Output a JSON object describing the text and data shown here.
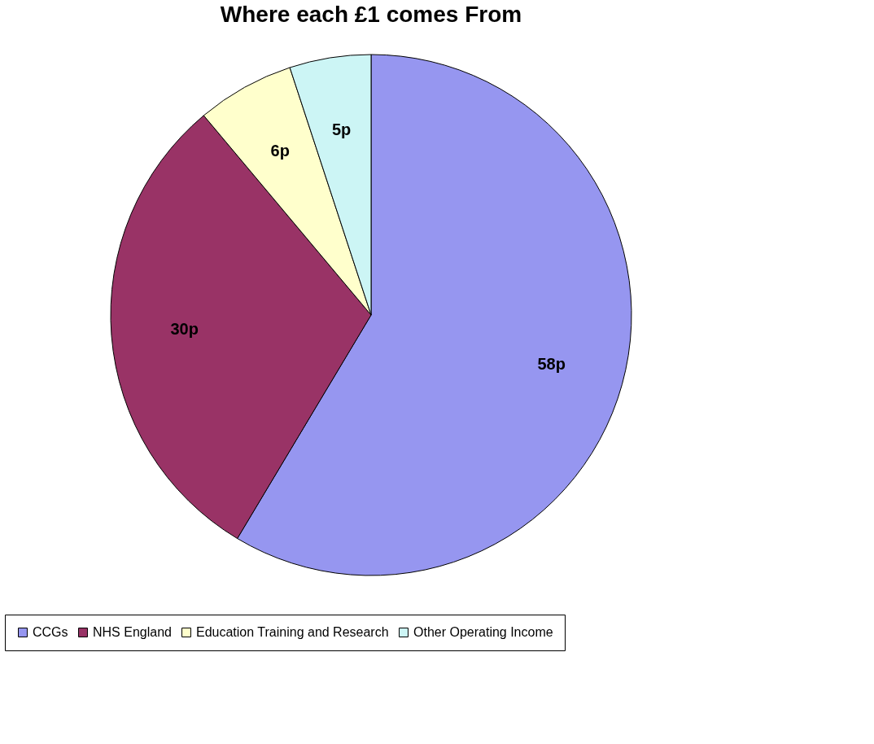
{
  "chart_data": {
    "type": "pie",
    "title": "Where each £1 comes From",
    "categories": [
      "CCGs",
      "NHS England",
      "Education Training and Research",
      "Other Operating Income"
    ],
    "values": [
      58,
      30,
      6,
      5
    ],
    "colors": [
      "#9696f0",
      "#993366",
      "#ffffcc",
      "#ccf5f5"
    ],
    "value_labels": [
      "58p",
      "30p",
      "6p",
      "5p"
    ],
    "legend": "bottom"
  }
}
